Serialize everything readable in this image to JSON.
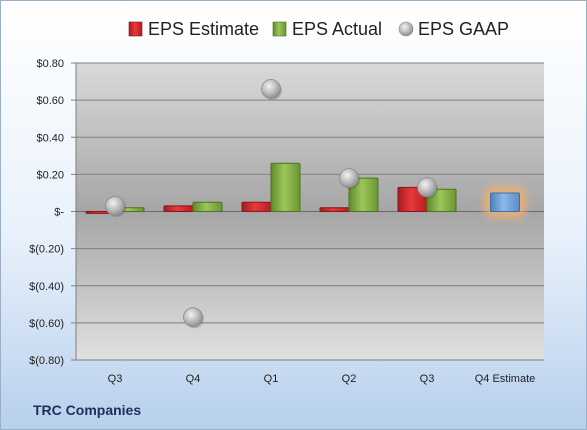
{
  "company": "TRC Companies",
  "colors": {
    "estimate": "#d9262a",
    "actual": "#84b33f",
    "gaap": "#b7b7b7",
    "projection": "#6fa2dd",
    "projection_glow": "#f5b169"
  },
  "chart_data": {
    "type": "bar",
    "categories": [
      "Q3",
      "Q4",
      "Q1",
      "Q2",
      "Q3",
      "Q4 Estimate"
    ],
    "series": [
      {
        "name": "EPS Estimate",
        "values": [
          -0.01,
          0.03,
          0.05,
          0.02,
          0.13,
          null
        ]
      },
      {
        "name": "EPS Actual",
        "values": [
          0.02,
          0.05,
          0.26,
          0.18,
          0.12,
          null
        ]
      },
      {
        "name": "EPS GAAP",
        "type": "scatter",
        "values": [
          0.03,
          -0.57,
          0.66,
          0.18,
          0.13,
          null
        ]
      }
    ],
    "projection": {
      "category": "Q4 Estimate",
      "value": 0.1
    },
    "ylim": [
      -0.8,
      0.8
    ],
    "yticks": [
      0.8,
      0.6,
      0.4,
      0.2,
      0,
      -0.2,
      -0.4,
      -0.6,
      -0.8
    ],
    "ytick_labels": [
      "$0.80",
      "$0.60",
      "$0.40",
      "$0.20",
      "$-",
      "$(0.20)",
      "$(0.40)",
      "$(0.60)",
      "$(0.80)"
    ],
    "legend": [
      "EPS Estimate",
      "EPS Actual",
      "EPS GAAP"
    ],
    "legend_position": "top",
    "grid": true,
    "title": "",
    "xlabel": "",
    "ylabel": ""
  }
}
